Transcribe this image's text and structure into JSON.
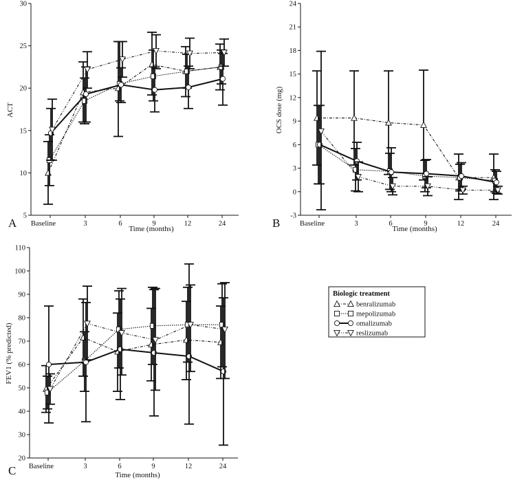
{
  "chart_data": [
    {
      "type": "line",
      "panel_label": "A",
      "title": "",
      "xlabel": "Time (months)",
      "ylabel": "ACT",
      "categories": [
        "Baseline",
        "3",
        "6",
        "9",
        "12",
        "24"
      ],
      "ylim": [
        5,
        30
      ],
      "yticks": [
        5,
        10,
        15,
        20,
        25,
        30
      ],
      "series": [
        {
          "name": "benralizumab",
          "values": [
            10.0,
            19.5,
            20.0,
            22.8,
            22.0,
            22.5
          ],
          "lower": [
            6.3,
            16.0,
            14.3,
            19.2,
            19.0,
            19.8
          ],
          "upper": [
            13.7,
            23.1,
            25.5,
            26.6,
            24.9,
            25.2
          ]
        },
        {
          "name": "mepolizumab",
          "values": [
            11.5,
            18.5,
            20.5,
            21.4,
            22.0,
            22.5
          ],
          "lower": [
            8.5,
            15.8,
            18.5,
            18.5,
            20.0,
            20.5
          ],
          "upper": [
            14.5,
            21.2,
            25.5,
            24.5,
            24.0,
            24.5
          ]
        },
        {
          "name": "omalizumab",
          "values": [
            14.7,
            19.3,
            20.4,
            19.8,
            20.1,
            21.1
          ],
          "lower": [
            11.5,
            16.0,
            18.3,
            17.2,
            17.6,
            18.0
          ],
          "upper": [
            17.6,
            22.5,
            22.4,
            22.5,
            22.6,
            24.1
          ]
        },
        {
          "name": "reslizumab",
          "values": [
            15.1,
            22.2,
            23.4,
            24.4,
            24.1,
            24.2
          ],
          "lower": [
            11.5,
            20.0,
            21.3,
            22.3,
            22.3,
            22.6
          ],
          "upper": [
            18.7,
            24.3,
            25.5,
            26.3,
            25.9,
            25.8
          ]
        }
      ]
    },
    {
      "type": "line",
      "panel_label": "B",
      "title": "",
      "xlabel": "Time (months)",
      "ylabel": "OCS dose (mg)",
      "categories": [
        "Baseline",
        "3",
        "6",
        "9",
        "12",
        "24"
      ],
      "ylim": [
        -3,
        24
      ],
      "yticks": [
        -3,
        0,
        3,
        6,
        9,
        12,
        15,
        18,
        21,
        24
      ],
      "series": [
        {
          "name": "benralizumab",
          "values": [
            9.4,
            9.4,
            8.8,
            8.5,
            1.8,
            1.8
          ],
          "lower": [
            3.4,
            3.4,
            2.2,
            1.5,
            -1.0,
            -1.0
          ],
          "upper": [
            15.4,
            15.4,
            15.4,
            15.5,
            4.8,
            4.8
          ]
        },
        {
          "name": "mepolizumab",
          "values": [
            6.0,
            2.8,
            2.6,
            2.0,
            1.8,
            1.4
          ],
          "lower": [
            1.0,
            0.1,
            0.3,
            0.0,
            0.1,
            0.0
          ],
          "upper": [
            11.0,
            5.5,
            4.9,
            4.0,
            3.5,
            2.8
          ]
        },
        {
          "name": "omalizumab",
          "values": [
            6.0,
            3.9,
            2.5,
            2.3,
            2.0,
            1.2
          ],
          "lower": [
            1.0,
            1.5,
            0.0,
            0.5,
            0.3,
            -0.2
          ],
          "upper": [
            11.0,
            6.3,
            5.6,
            4.1,
            3.7,
            2.6
          ]
        },
        {
          "name": "reslizumab",
          "values": [
            7.7,
            1.9,
            0.7,
            0.7,
            0.2,
            0.2
          ],
          "lower": [
            -2.3,
            0.0,
            -0.4,
            -0.5,
            -0.3,
            -0.3
          ],
          "upper": [
            17.9,
            3.8,
            1.8,
            1.9,
            0.7,
            0.7
          ]
        }
      ]
    },
    {
      "type": "line",
      "panel_label": "C",
      "title": "",
      "xlabel": "Time (months)",
      "ylabel": "FEV1 (% predicted)",
      "categories": [
        "Baseline",
        "3",
        "6",
        "9",
        "12",
        "24"
      ],
      "ylim": [
        20,
        110
      ],
      "yticks": [
        20,
        30,
        40,
        50,
        60,
        70,
        80,
        90,
        100,
        110
      ],
      "series": [
        {
          "name": "benralizumab",
          "values": [
            49.5,
            71.5,
            65.5,
            68.5,
            70.5,
            69.5
          ],
          "lower": [
            39.5,
            55.0,
            48.5,
            53.0,
            53.5,
            54.0
          ],
          "upper": [
            59.5,
            88.0,
            82.0,
            84.0,
            87.0,
            85.0
          ]
        },
        {
          "name": "mepolizumab",
          "values": [
            48.0,
            61.5,
            75.0,
            76.5,
            77.0,
            77.0
          ],
          "lower": [
            41.0,
            48.5,
            58.5,
            60.0,
            61.0,
            59.0
          ],
          "upper": [
            55.0,
            74.0,
            91.5,
            93.0,
            93.0,
            94.5
          ]
        },
        {
          "name": "omalizumab",
          "values": [
            60.0,
            61.0,
            66.5,
            65.0,
            63.5,
            57.0
          ],
          "lower": [
            35.0,
            35.5,
            45.0,
            38.0,
            34.5,
            25.5
          ],
          "upper": [
            85.0,
            86.5,
            88.0,
            92.0,
            103.0,
            88.5
          ]
        },
        {
          "name": "reslizumab",
          "values": [
            49.5,
            77.5,
            73.5,
            70.5,
            77.0,
            75.0
          ],
          "lower": [
            43.0,
            62.0,
            55.5,
            49.0,
            57.0,
            54.0
          ],
          "upper": [
            56.0,
            93.5,
            92.5,
            92.5,
            94.0,
            95.0
          ]
        }
      ]
    }
  ],
  "legend": {
    "title": "Biologic treatment",
    "entries": [
      {
        "name": "benralizumab",
        "marker": "triangle-up",
        "line": "dash-dot"
      },
      {
        "name": "mepolizumab",
        "marker": "square",
        "line": "dotted"
      },
      {
        "name": "omalizumab",
        "marker": "circle",
        "line": "solid"
      },
      {
        "name": "reslizumab",
        "marker": "triangle-down",
        "line": "dash-dot-dot"
      }
    ]
  },
  "colors": {
    "ink": "#111111",
    "background": "#ffffff",
    "marker_fill": "#ffffff"
  }
}
